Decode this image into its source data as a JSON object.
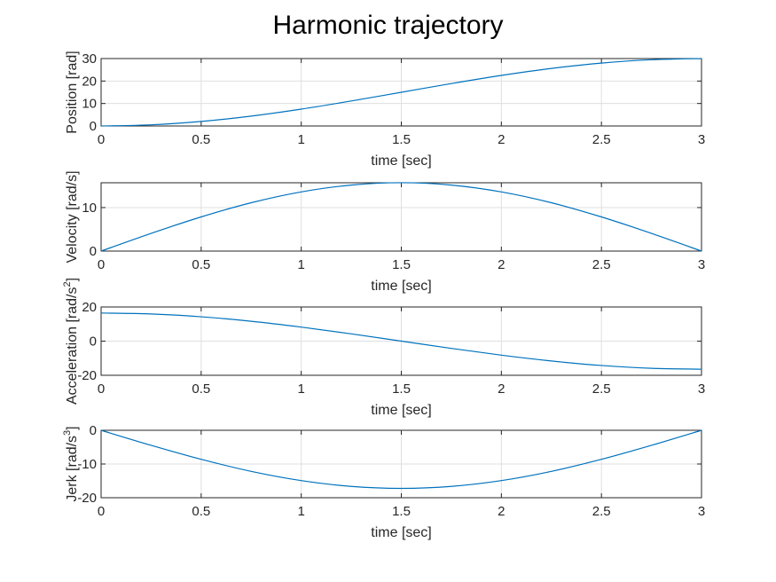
{
  "figure": {
    "title": "Harmonic trajectory"
  },
  "chart_data": [
    {
      "type": "line",
      "xlabel": "time [sec]",
      "ylabel": "Position [rad]",
      "ylabel_sup": "",
      "ylabel_after": "",
      "xlim": [
        0,
        3
      ],
      "ylim": [
        0,
        30
      ],
      "xticks": [
        0,
        0.5,
        1,
        1.5,
        2,
        2.5,
        3
      ],
      "xtick_labels": [
        "0",
        "0.5",
        "1",
        "1.5",
        "2",
        "2.5",
        "3"
      ],
      "yticks": [
        0,
        10,
        20,
        30
      ],
      "ytick_labels": [
        "0",
        "10",
        "20",
        "30"
      ],
      "grid": true,
      "color": "#0072BD",
      "x": [
        0,
        0.25,
        0.5,
        0.75,
        1,
        1.25,
        1.5,
        1.75,
        2,
        2.25,
        2.5,
        2.75,
        3
      ],
      "y": [
        0,
        0.51,
        2.01,
        4.39,
        7.5,
        11.12,
        15,
        18.88,
        22.5,
        25.61,
        27.99,
        29.49,
        30
      ]
    },
    {
      "type": "line",
      "xlabel": "time [sec]",
      "ylabel": "Velocity [rad/s]",
      "ylabel_sup": "",
      "ylabel_after": "",
      "xlim": [
        0,
        3
      ],
      "ylim": [
        0,
        15.7
      ],
      "xticks": [
        0,
        0.5,
        1,
        1.5,
        2,
        2.5,
        3
      ],
      "xtick_labels": [
        "0",
        "0.5",
        "1",
        "1.5",
        "2",
        "2.5",
        "3"
      ],
      "yticks": [
        0,
        10
      ],
      "ytick_labels": [
        "0",
        "10"
      ],
      "grid": true,
      "color": "#0072BD",
      "x": [
        0,
        0.25,
        0.5,
        0.75,
        1,
        1.25,
        1.5,
        1.75,
        2,
        2.25,
        2.5,
        2.75,
        3
      ],
      "y": [
        0,
        4.07,
        7.85,
        11.11,
        13.6,
        15.17,
        15.71,
        15.17,
        13.6,
        11.11,
        7.85,
        4.07,
        0
      ]
    },
    {
      "type": "line",
      "xlabel": "time [sec]",
      "ylabel": "Acceleration [rad/s",
      "ylabel_sup": "2",
      "ylabel_after": "]",
      "xlim": [
        0,
        3
      ],
      "ylim": [
        -20,
        20
      ],
      "xticks": [
        0,
        0.5,
        1,
        1.5,
        2,
        2.5,
        3
      ],
      "xtick_labels": [
        "0",
        "0.5",
        "1",
        "1.5",
        "2",
        "2.5",
        "3"
      ],
      "yticks": [
        -20,
        0,
        20
      ],
      "ytick_labels": [
        "-20",
        "0",
        "20"
      ],
      "grid": true,
      "color": "#0072BD",
      "x": [
        0,
        0.25,
        0.5,
        0.75,
        1,
        1.25,
        1.5,
        1.75,
        2,
        2.25,
        2.5,
        2.75,
        3
      ],
      "y": [
        16.45,
        15.89,
        14.25,
        11.63,
        8.22,
        4.26,
        0,
        -4.26,
        -8.22,
        -11.63,
        -14.25,
        -15.89,
        -16.45
      ]
    },
    {
      "type": "line",
      "xlabel": "time [sec]",
      "ylabel": "Jerk [rad/s",
      "ylabel_sup": "3",
      "ylabel_after": "]",
      "xlim": [
        0,
        3
      ],
      "ylim": [
        -20,
        0
      ],
      "xticks": [
        0,
        0.5,
        1,
        1.5,
        2,
        2.5,
        3
      ],
      "xtick_labels": [
        "0",
        "0.5",
        "1",
        "1.5",
        "2",
        "2.5",
        "3"
      ],
      "yticks": [
        -20,
        -10,
        0
      ],
      "ytick_labels": [
        "-20",
        "-10",
        "0"
      ],
      "grid": true,
      "color": "#0072BD",
      "x": [
        0,
        0.25,
        0.5,
        0.75,
        1,
        1.25,
        1.5,
        1.75,
        2,
        2.25,
        2.5,
        2.75,
        3
      ],
      "y": [
        0,
        -4.46,
        -8.61,
        -12.18,
        -14.92,
        -16.64,
        -17.23,
        -16.64,
        -14.92,
        -12.18,
        -8.61,
        -4.46,
        0
      ]
    }
  ]
}
